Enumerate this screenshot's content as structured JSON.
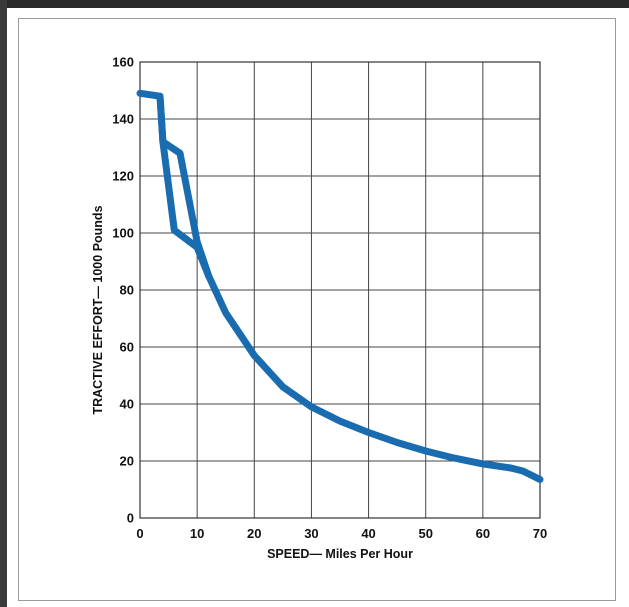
{
  "chart_data": {
    "type": "line",
    "title": "",
    "xlabel": "SPEED— Miles Per Hour",
    "ylabel": "TRACTIVE EFFORT— 1000 Pounds",
    "xlim": [
      0,
      70
    ],
    "ylim": [
      0,
      160
    ],
    "xticks": [
      0,
      10,
      20,
      30,
      40,
      50,
      60,
      70
    ],
    "yticks": [
      0,
      20,
      40,
      60,
      80,
      100,
      120,
      140,
      160
    ],
    "grid": true,
    "legend": "none",
    "line_color": "#1a6cb0",
    "series": [
      {
        "name": "",
        "x": [
          0,
          3.5,
          4,
          7,
          10,
          12,
          15,
          20,
          25,
          30,
          35,
          40,
          45,
          50,
          55,
          60,
          65,
          67,
          70
        ],
        "y": [
          149,
          148,
          132,
          128,
          97,
          85,
          72,
          57,
          46,
          39,
          34,
          30,
          26.5,
          23.5,
          21,
          19,
          17.5,
          16.5,
          13.5
        ]
      },
      {
        "name": "",
        "x": [
          3.5,
          4,
          6,
          10,
          12
        ],
        "y": [
          148,
          132,
          101,
          95,
          85
        ]
      }
    ]
  }
}
